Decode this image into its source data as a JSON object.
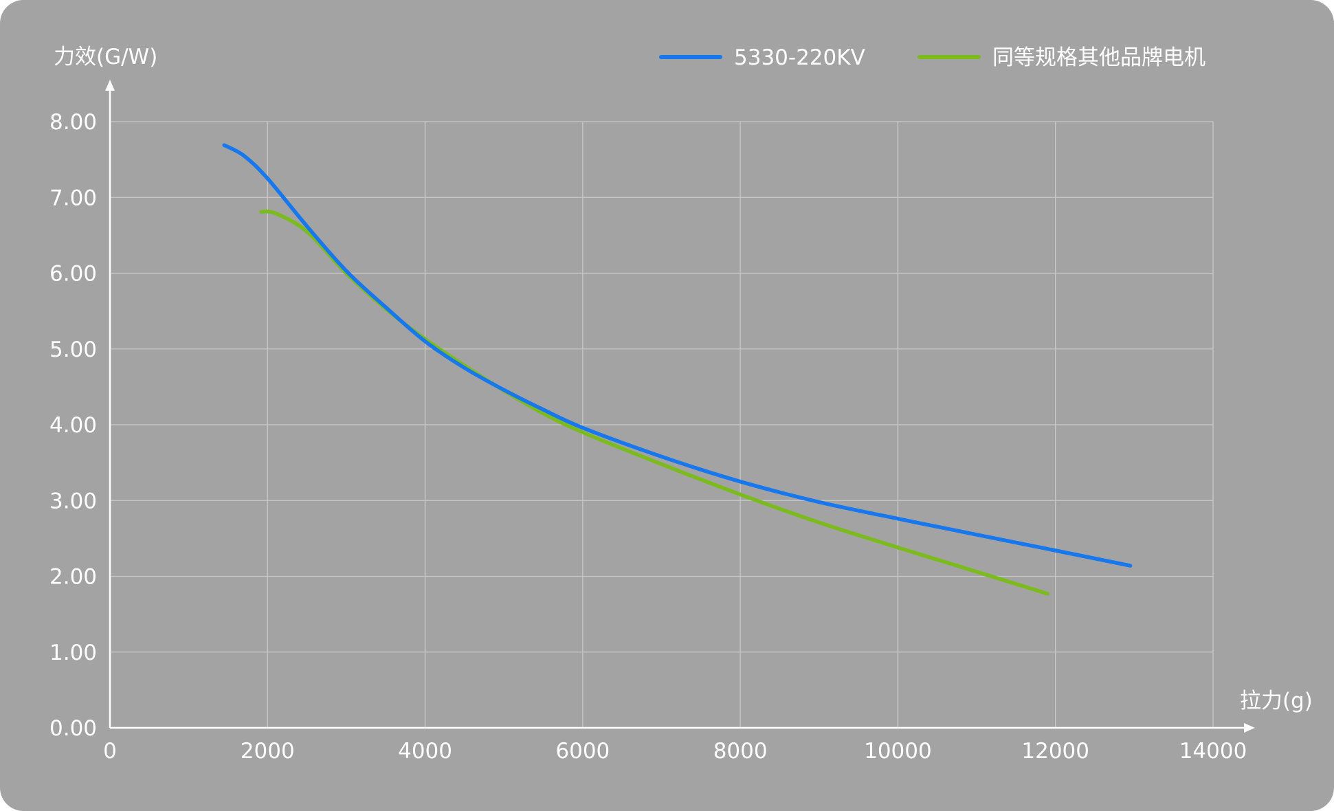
{
  "chart_data": {
    "type": "line",
    "title": "",
    "ylabel": "力效(G/W)",
    "xlabel": "拉力(g)",
    "xlim": [
      0,
      14000
    ],
    "ylim": [
      0,
      8
    ],
    "x_ticks": [
      0,
      2000,
      4000,
      6000,
      8000,
      10000,
      12000,
      14000
    ],
    "x_tick_labels": [
      "0",
      "2000",
      "4000",
      "6000",
      "8000",
      "10000",
      "12000",
      "14000"
    ],
    "y_ticks": [
      0,
      1,
      2,
      3,
      4,
      5,
      6,
      7,
      8
    ],
    "y_tick_labels": [
      "0.00",
      "1.00",
      "2.00",
      "3.00",
      "4.00",
      "5.00",
      "6.00",
      "7.00",
      "8.00"
    ],
    "grid": true,
    "legend_position": "top-right",
    "series": [
      {
        "name": "5330-220KV",
        "color": "#1677ee",
        "points": [
          [
            1450,
            7.69
          ],
          [
            1700,
            7.55
          ],
          [
            2000,
            7.25
          ],
          [
            2500,
            6.62
          ],
          [
            3000,
            6.03
          ],
          [
            3500,
            5.55
          ],
          [
            4000,
            5.1
          ],
          [
            4500,
            4.75
          ],
          [
            5000,
            4.46
          ],
          [
            5500,
            4.2
          ],
          [
            6000,
            3.96
          ],
          [
            7000,
            3.58
          ],
          [
            8000,
            3.25
          ],
          [
            9000,
            2.98
          ],
          [
            10000,
            2.76
          ],
          [
            11000,
            2.55
          ],
          [
            12000,
            2.34
          ],
          [
            12950,
            2.14
          ]
        ]
      },
      {
        "name": "同等规格其他品牌电机",
        "color": "#7cbb1e",
        "points": [
          [
            1920,
            6.81
          ],
          [
            2100,
            6.79
          ],
          [
            2500,
            6.55
          ],
          [
            3000,
            6.0
          ],
          [
            3500,
            5.53
          ],
          [
            4000,
            5.13
          ],
          [
            4500,
            4.78
          ],
          [
            5000,
            4.45
          ],
          [
            5500,
            4.15
          ],
          [
            6000,
            3.9
          ],
          [
            7000,
            3.48
          ],
          [
            8000,
            3.08
          ],
          [
            9000,
            2.71
          ],
          [
            10000,
            2.38
          ],
          [
            11000,
            2.06
          ],
          [
            11900,
            1.77
          ]
        ]
      }
    ]
  }
}
